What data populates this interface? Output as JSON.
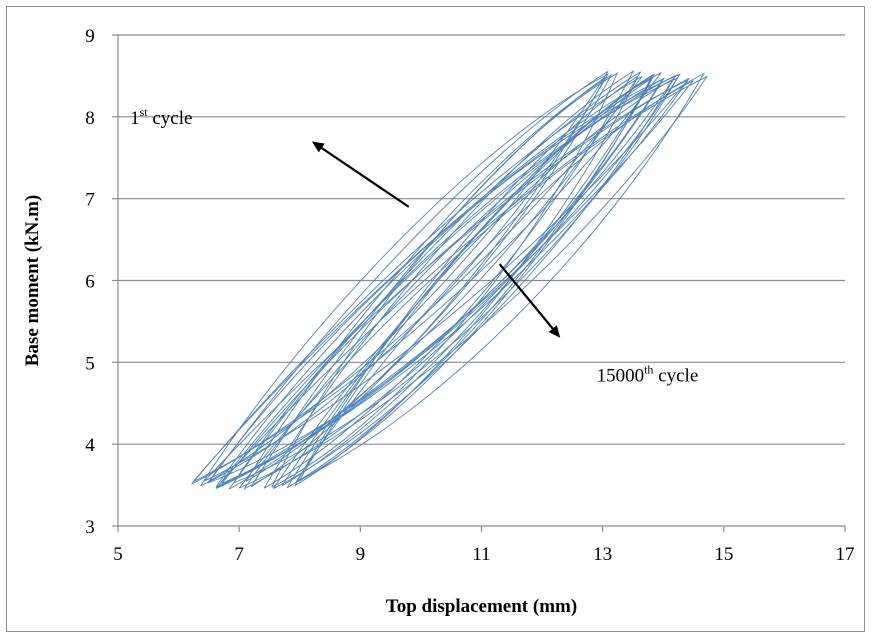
{
  "chart_data": {
    "type": "line",
    "title": "",
    "xlabel": "Top displacement (mm)",
    "ylabel": "Base moment (kN.m)",
    "xlim": [
      5,
      17
    ],
    "ylim": [
      3,
      9
    ],
    "x_ticks": [
      "5",
      "7",
      "9",
      "11",
      "13",
      "15",
      "17"
    ],
    "y_ticks": [
      "3",
      "4",
      "5",
      "6",
      "7",
      "8",
      "9"
    ],
    "grid": "horizontal",
    "legend": "none",
    "series_color": "#4f81bd",
    "loops": {
      "count": 24,
      "bottom_y": 3.5,
      "top_y": 8.5,
      "bottom_x_range": [
        6.2,
        8.0
      ],
      "top_x_range": [
        13.0,
        14.8
      ]
    },
    "annotations": [
      {
        "base": "1",
        "sup": "st",
        "rest": " cycle",
        "x": 5.2,
        "y": 8.0
      },
      {
        "base": "15000",
        "sup": "th",
        "rest": " cycle",
        "x": 12.9,
        "y": 4.85
      }
    ],
    "arrows": [
      {
        "from": [
          9.8,
          6.9
        ],
        "to": [
          8.2,
          7.7
        ]
      },
      {
        "from": [
          11.3,
          6.2
        ],
        "to": [
          12.3,
          5.3
        ]
      }
    ]
  }
}
